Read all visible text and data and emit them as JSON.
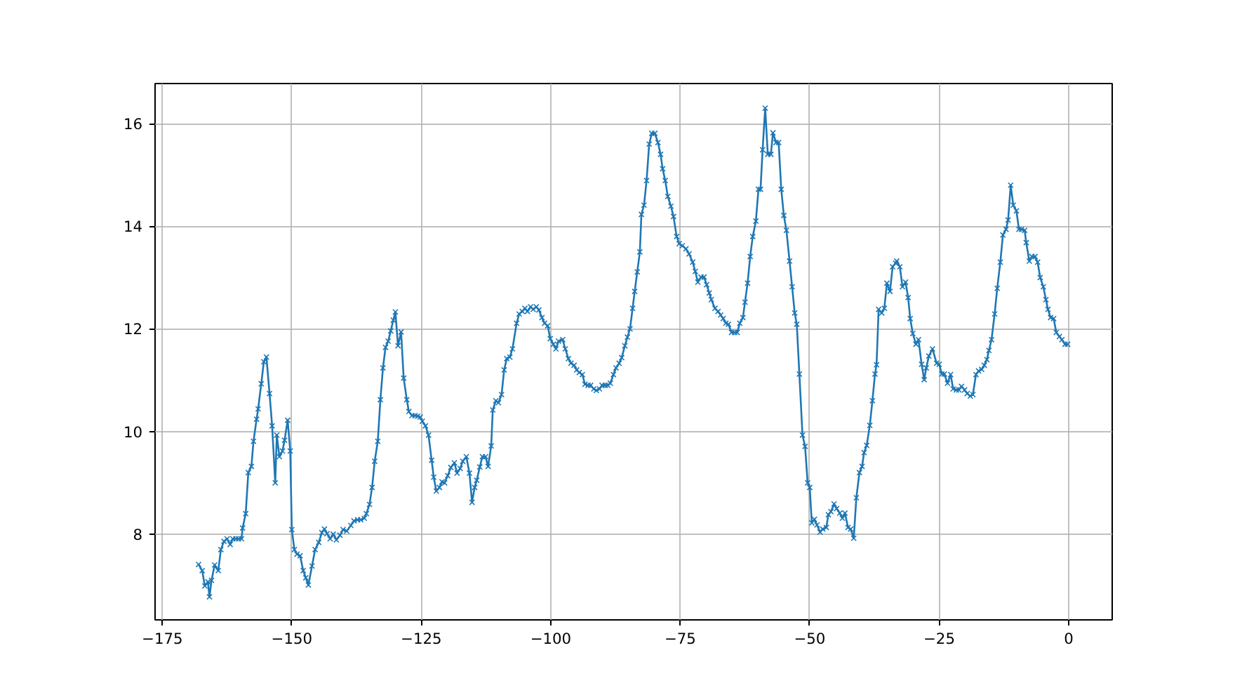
{
  "chart_data": {
    "type": "line",
    "marker": "cross",
    "line_style": "solid",
    "grid": true,
    "xlim": [
      -176.4,
      8.4
    ],
    "ylim": [
      6.33,
      16.78
    ],
    "xticks": [
      {
        "value": -175,
        "label": "−175"
      },
      {
        "value": -150,
        "label": "−150"
      },
      {
        "value": -125,
        "label": "−125"
      },
      {
        "value": -100,
        "label": "−100"
      },
      {
        "value": -75,
        "label": "−75"
      },
      {
        "value": -50,
        "label": "−50"
      },
      {
        "value": -25,
        "label": "−25"
      },
      0
    ],
    "yticks": [
      8,
      10,
      12,
      14,
      16
    ],
    "series": [
      {
        "color": "#1f77b4",
        "x": [
          -168.0,
          -167.3,
          -166.8,
          -166.2,
          -165.9,
          -165.5,
          -164.9,
          -164.2,
          -163.7,
          -163.1,
          -162.5,
          -161.9,
          -161.4,
          -160.8,
          -160.3,
          -159.7,
          -159.5,
          -158.9,
          -158.4,
          -157.8,
          -157.4,
          -156.8,
          -156.5,
          -155.9,
          -155.4,
          -154.9,
          -154.3,
          -153.8,
          -153.2,
          -152.9,
          -152.4,
          -151.8,
          -151.4,
          -150.8,
          -150.3,
          -150.0,
          -149.5,
          -149.0,
          -148.4,
          -147.8,
          -147.3,
          -146.8,
          -146.1,
          -145.5,
          -144.8,
          -144.2,
          -143.7,
          -143.2,
          -142.6,
          -142.0,
          -141.4,
          -140.7,
          -140.1,
          -139.4,
          -138.6,
          -138.0,
          -137.3,
          -136.7,
          -136.0,
          -135.6,
          -135.0,
          -134.5,
          -134.0,
          -133.4,
          -132.9,
          -132.4,
          -131.9,
          -131.4,
          -130.9,
          -130.4,
          -130.0,
          -129.5,
          -128.9,
          -128.4,
          -127.8,
          -127.4,
          -126.8,
          -126.2,
          -125.7,
          -125.2,
          -124.8,
          -124.2,
          -123.6,
          -123.0,
          -122.6,
          -122.1,
          -121.5,
          -121.0,
          -120.5,
          -119.9,
          -119.3,
          -118.6,
          -118.1,
          -117.5,
          -117.0,
          -116.3,
          -115.7,
          -115.2,
          -114.7,
          -114.3,
          -113.7,
          -113.2,
          -112.6,
          -112.1,
          -111.5,
          -111.2,
          -110.6,
          -110.1,
          -109.5,
          -109.0,
          -108.5,
          -107.9,
          -107.4,
          -106.6,
          -106.1,
          -105.5,
          -105.0,
          -104.5,
          -103.9,
          -103.4,
          -102.8,
          -102.3,
          -101.7,
          -101.2,
          -100.6,
          -100.1,
          -99.5,
          -99.0,
          -98.5,
          -97.7,
          -97.2,
          -96.6,
          -96.1,
          -95.5,
          -95.0,
          -94.5,
          -93.9,
          -93.4,
          -92.8,
          -92.3,
          -91.7,
          -91.2,
          -90.6,
          -90.1,
          -89.5,
          -89.0,
          -88.5,
          -87.9,
          -87.4,
          -86.8,
          -86.3,
          -85.7,
          -85.2,
          -84.7,
          -84.2,
          -83.8,
          -83.3,
          -82.8,
          -82.5,
          -82.0,
          -81.5,
          -81.0,
          -80.5,
          -79.9,
          -79.3,
          -78.8,
          -78.4,
          -77.9,
          -77.4,
          -76.8,
          -76.3,
          -75.7,
          -75.2,
          -74.6,
          -73.9,
          -73.3,
          -72.6,
          -72.1,
          -71.6,
          -71.0,
          -70.4,
          -69.9,
          -69.4,
          -69.0,
          -68.3,
          -67.7,
          -67.2,
          -66.7,
          -66.2,
          -65.7,
          -65.1,
          -64.5,
          -64.0,
          -63.5,
          -62.9,
          -62.5,
          -62.0,
          -61.5,
          -61.0,
          -60.4,
          -59.9,
          -59.5,
          -59.1,
          -58.6,
          -58.1,
          -57.5,
          -57.1,
          -56.5,
          -56.0,
          -55.5,
          -55.0,
          -54.5,
          -53.9,
          -53.4,
          -52.9,
          -52.5,
          -52.0,
          -51.4,
          -50.9,
          -50.4,
          -50.0,
          -49.6,
          -49.1,
          -48.6,
          -48.0,
          -47.5,
          -46.8,
          -46.4,
          -45.9,
          -45.3,
          -44.8,
          -44.2,
          -43.7,
          -43.2,
          -42.6,
          -42.1,
          -41.5,
          -41.0,
          -40.4,
          -39.9,
          -39.5,
          -39.0,
          -38.4,
          -37.9,
          -37.4,
          -37.1,
          -36.7,
          -36.1,
          -35.6,
          -35.1,
          -34.5,
          -34.0,
          -33.4,
          -33.2,
          -32.6,
          -32.1,
          -31.5,
          -31.0,
          -30.6,
          -30.1,
          -29.5,
          -29.0,
          -28.4,
          -27.9,
          -27.5,
          -27.0,
          -26.3,
          -25.5,
          -25.0,
          -24.5,
          -24.0,
          -23.4,
          -22.8,
          -22.3,
          -21.7,
          -21.2,
          -20.7,
          -20.1,
          -19.6,
          -19.0,
          -18.5,
          -17.9,
          -17.4,
          -16.8,
          -16.3,
          -15.8,
          -15.4,
          -14.9,
          -14.3,
          -13.8,
          -13.2,
          -12.7,
          -12.1,
          -11.7,
          -11.2,
          -10.7,
          -10.1,
          -9.6,
          -9.1,
          -8.5,
          -8.2,
          -7.6,
          -7.1,
          -6.5,
          -6.0,
          -5.5,
          -4.9,
          -4.4,
          -4.0,
          -3.5,
          -2.9,
          -2.4,
          -1.8,
          -1.3,
          -0.7,
          -0.2
        ],
        "values": [
          7.41,
          7.29,
          6.99,
          7.07,
          6.78,
          7.1,
          7.4,
          7.29,
          7.7,
          7.86,
          7.91,
          7.8,
          7.91,
          7.91,
          7.91,
          7.91,
          8.12,
          8.4,
          9.2,
          9.32,
          9.81,
          10.24,
          10.44,
          10.93,
          11.36,
          11.45,
          10.74,
          10.11,
          9.0,
          9.93,
          9.51,
          9.62,
          9.83,
          10.22,
          9.62,
          8.09,
          7.7,
          7.61,
          7.58,
          7.29,
          7.15,
          7.01,
          7.38,
          7.7,
          7.84,
          8.03,
          8.1,
          8.01,
          7.91,
          8.0,
          7.89,
          7.98,
          8.09,
          8.06,
          8.17,
          8.26,
          8.28,
          8.28,
          8.31,
          8.4,
          8.58,
          8.91,
          9.42,
          9.81,
          10.62,
          11.24,
          11.64,
          11.76,
          11.96,
          12.17,
          12.33,
          11.67,
          11.94,
          11.04,
          10.62,
          10.39,
          10.31,
          10.31,
          10.3,
          10.28,
          10.2,
          10.11,
          9.93,
          9.44,
          9.11,
          8.84,
          8.91,
          9.02,
          9.0,
          9.14,
          9.3,
          9.39,
          9.19,
          9.28,
          9.42,
          9.51,
          9.19,
          8.62,
          8.91,
          9.05,
          9.31,
          9.51,
          9.51,
          9.32,
          9.72,
          10.42,
          10.6,
          10.56,
          10.72,
          11.2,
          11.42,
          11.45,
          11.61,
          12.11,
          12.29,
          12.34,
          12.4,
          12.34,
          12.43,
          12.38,
          12.43,
          12.37,
          12.22,
          12.11,
          12.06,
          11.81,
          11.7,
          11.61,
          11.76,
          11.79,
          11.61,
          11.42,
          11.33,
          11.29,
          11.2,
          11.15,
          11.11,
          10.92,
          10.9,
          10.9,
          10.83,
          10.8,
          10.83,
          10.9,
          10.9,
          10.9,
          10.94,
          11.11,
          11.24,
          11.33,
          11.44,
          11.67,
          11.84,
          12.0,
          12.4,
          12.73,
          13.11,
          13.5,
          14.23,
          14.41,
          14.89,
          15.6,
          15.81,
          15.81,
          15.63,
          15.4,
          15.12,
          14.89,
          14.58,
          14.39,
          14.19,
          13.8,
          13.66,
          13.62,
          13.56,
          13.46,
          13.3,
          13.12,
          12.91,
          13.01,
          13.01,
          12.86,
          12.7,
          12.57,
          12.4,
          12.34,
          12.27,
          12.2,
          12.11,
          12.09,
          11.93,
          11.93,
          11.93,
          12.11,
          12.22,
          12.52,
          12.89,
          13.41,
          13.8,
          14.1,
          14.72,
          14.72,
          15.49,
          16.3,
          15.4,
          15.4,
          15.82,
          15.63,
          15.63,
          14.72,
          14.21,
          13.92,
          13.32,
          12.82,
          12.31,
          12.09,
          11.12,
          9.93,
          9.71,
          9.0,
          8.91,
          8.22,
          8.29,
          8.18,
          8.04,
          8.1,
          8.13,
          8.38,
          8.44,
          8.59,
          8.5,
          8.41,
          8.31,
          8.41,
          8.13,
          8.1,
          7.92,
          8.71,
          9.2,
          9.32,
          9.59,
          9.73,
          10.12,
          10.6,
          11.12,
          11.3,
          12.38,
          12.31,
          12.4,
          12.89,
          12.73,
          13.21,
          13.28,
          13.32,
          13.21,
          12.82,
          12.91,
          12.61,
          12.2,
          11.91,
          11.7,
          11.79,
          11.31,
          11.01,
          11.24,
          11.47,
          11.61,
          11.33,
          11.31,
          11.12,
          11.12,
          10.94,
          11.11,
          10.83,
          10.81,
          10.81,
          10.88,
          10.81,
          10.74,
          10.69,
          10.72,
          11.11,
          11.18,
          11.21,
          11.29,
          11.4,
          11.58,
          11.79,
          12.29,
          12.79,
          13.3,
          13.83,
          13.94,
          14.12,
          14.8,
          14.41,
          14.3,
          13.94,
          13.94,
          13.92,
          13.68,
          13.32,
          13.41,
          13.41,
          13.3,
          13.0,
          12.82,
          12.57,
          12.38,
          12.22,
          12.2,
          11.93,
          11.85,
          11.79,
          11.7,
          11.7
        ]
      }
    ]
  }
}
